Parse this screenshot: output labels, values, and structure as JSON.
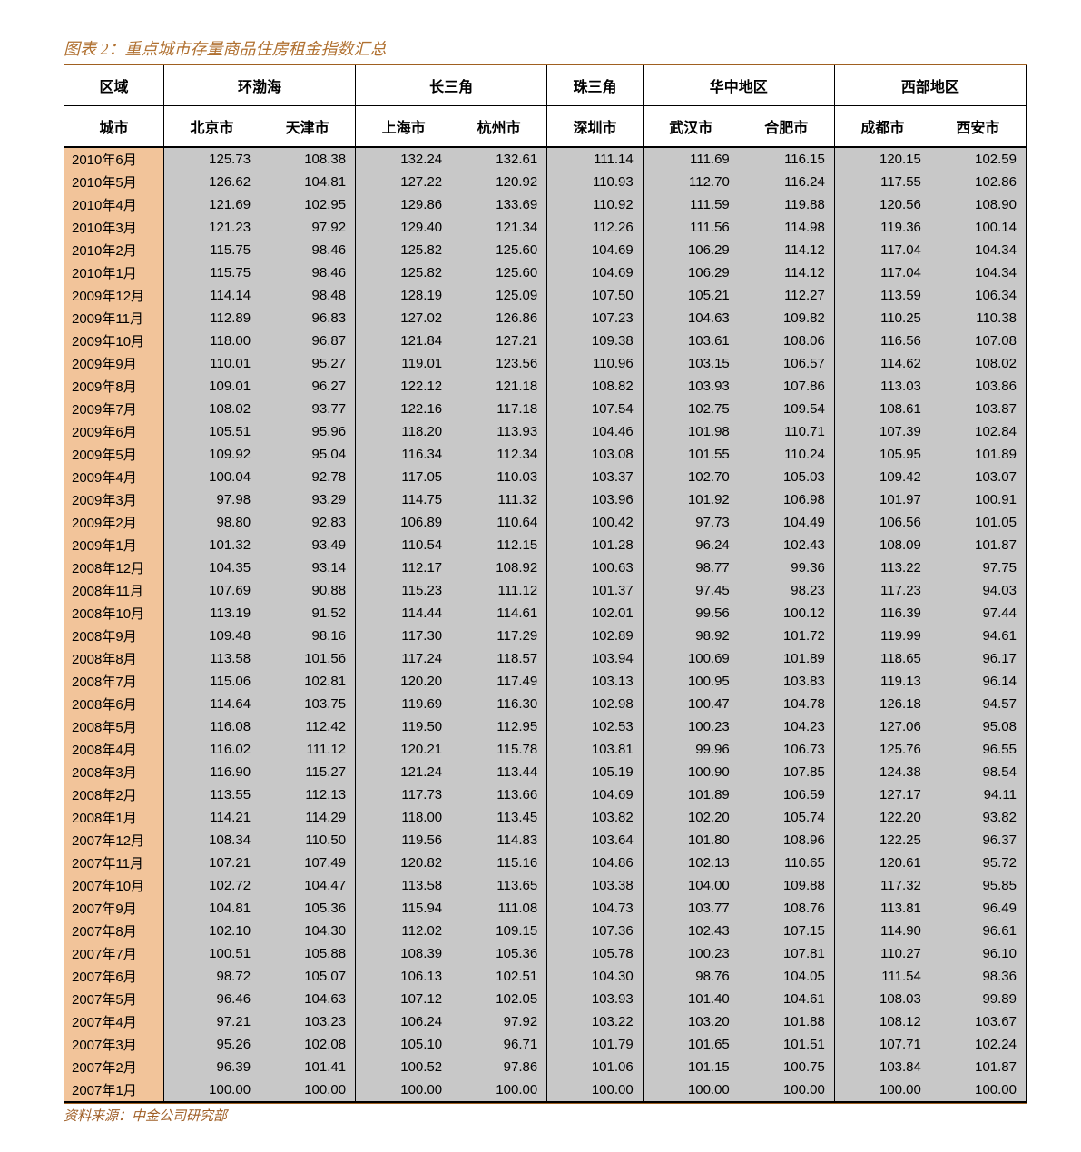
{
  "type": "table",
  "title": "图表 2：重点城市存量商品住房租金指数汇总",
  "source": "资料来源：中金公司研究部",
  "colors": {
    "title_text": "#b07030",
    "rule": "#a06020",
    "date_bg": "#f2c49a",
    "value_bg": "#c8c8c8",
    "border": "#000000",
    "page_bg": "#ffffff"
  },
  "fontsizes": {
    "title": 18,
    "header": 16,
    "body": 15,
    "source": 15
  },
  "header": {
    "row1_label": "区域",
    "row2_label": "城市",
    "regions": [
      {
        "name": "环渤海",
        "cities": [
          "北京市",
          "天津市"
        ]
      },
      {
        "name": "长三角",
        "cities": [
          "上海市",
          "杭州市"
        ]
      },
      {
        "name": "珠三角",
        "cities": [
          "深圳市"
        ]
      },
      {
        "name": "华中地区",
        "cities": [
          "武汉市",
          "合肥市"
        ]
      },
      {
        "name": "西部地区",
        "cities": [
          "成都市",
          "西安市"
        ]
      }
    ]
  },
  "columns": [
    "date",
    "北京市",
    "天津市",
    "上海市",
    "杭州市",
    "深圳市",
    "武汉市",
    "合肥市",
    "成都市",
    "西安市"
  ],
  "rows": [
    [
      "2010年6月",
      125.73,
      108.38,
      132.24,
      132.61,
      111.14,
      111.69,
      116.15,
      120.15,
      102.59
    ],
    [
      "2010年5月",
      126.62,
      104.81,
      127.22,
      120.92,
      110.93,
      112.7,
      116.24,
      117.55,
      102.86
    ],
    [
      "2010年4月",
      121.69,
      102.95,
      129.86,
      133.69,
      110.92,
      111.59,
      119.88,
      120.56,
      108.9
    ],
    [
      "2010年3月",
      121.23,
      97.92,
      129.4,
      121.34,
      112.26,
      111.56,
      114.98,
      119.36,
      100.14
    ],
    [
      "2010年2月",
      115.75,
      98.46,
      125.82,
      125.6,
      104.69,
      106.29,
      114.12,
      117.04,
      104.34
    ],
    [
      "2010年1月",
      115.75,
      98.46,
      125.82,
      125.6,
      104.69,
      106.29,
      114.12,
      117.04,
      104.34
    ],
    [
      "2009年12月",
      114.14,
      98.48,
      128.19,
      125.09,
      107.5,
      105.21,
      112.27,
      113.59,
      106.34
    ],
    [
      "2009年11月",
      112.89,
      96.83,
      127.02,
      126.86,
      107.23,
      104.63,
      109.82,
      110.25,
      110.38
    ],
    [
      "2009年10月",
      118.0,
      96.87,
      121.84,
      127.21,
      109.38,
      103.61,
      108.06,
      116.56,
      107.08
    ],
    [
      "2009年9月",
      110.01,
      95.27,
      119.01,
      123.56,
      110.96,
      103.15,
      106.57,
      114.62,
      108.02
    ],
    [
      "2009年8月",
      109.01,
      96.27,
      122.12,
      121.18,
      108.82,
      103.93,
      107.86,
      113.03,
      103.86
    ],
    [
      "2009年7月",
      108.02,
      93.77,
      122.16,
      117.18,
      107.54,
      102.75,
      109.54,
      108.61,
      103.87
    ],
    [
      "2009年6月",
      105.51,
      95.96,
      118.2,
      113.93,
      104.46,
      101.98,
      110.71,
      107.39,
      102.84
    ],
    [
      "2009年5月",
      109.92,
      95.04,
      116.34,
      112.34,
      103.08,
      101.55,
      110.24,
      105.95,
      101.89
    ],
    [
      "2009年4月",
      100.04,
      92.78,
      117.05,
      110.03,
      103.37,
      102.7,
      105.03,
      109.42,
      103.07
    ],
    [
      "2009年3月",
      97.98,
      93.29,
      114.75,
      111.32,
      103.96,
      101.92,
      106.98,
      101.97,
      100.91
    ],
    [
      "2009年2月",
      98.8,
      92.83,
      106.89,
      110.64,
      100.42,
      97.73,
      104.49,
      106.56,
      101.05
    ],
    [
      "2009年1月",
      101.32,
      93.49,
      110.54,
      112.15,
      101.28,
      96.24,
      102.43,
      108.09,
      101.87
    ],
    [
      "2008年12月",
      104.35,
      93.14,
      112.17,
      108.92,
      100.63,
      98.77,
      99.36,
      113.22,
      97.75
    ],
    [
      "2008年11月",
      107.69,
      90.88,
      115.23,
      111.12,
      101.37,
      97.45,
      98.23,
      117.23,
      94.03
    ],
    [
      "2008年10月",
      113.19,
      91.52,
      114.44,
      114.61,
      102.01,
      99.56,
      100.12,
      116.39,
      97.44
    ],
    [
      "2008年9月",
      109.48,
      98.16,
      117.3,
      117.29,
      102.89,
      98.92,
      101.72,
      119.99,
      94.61
    ],
    [
      "2008年8月",
      113.58,
      101.56,
      117.24,
      118.57,
      103.94,
      100.69,
      101.89,
      118.65,
      96.17
    ],
    [
      "2008年7月",
      115.06,
      102.81,
      120.2,
      117.49,
      103.13,
      100.95,
      103.83,
      119.13,
      96.14
    ],
    [
      "2008年6月",
      114.64,
      103.75,
      119.69,
      116.3,
      102.98,
      100.47,
      104.78,
      126.18,
      94.57
    ],
    [
      "2008年5月",
      116.08,
      112.42,
      119.5,
      112.95,
      102.53,
      100.23,
      104.23,
      127.06,
      95.08
    ],
    [
      "2008年4月",
      116.02,
      111.12,
      120.21,
      115.78,
      103.81,
      99.96,
      106.73,
      125.76,
      96.55
    ],
    [
      "2008年3月",
      116.9,
      115.27,
      121.24,
      113.44,
      105.19,
      100.9,
      107.85,
      124.38,
      98.54
    ],
    [
      "2008年2月",
      113.55,
      112.13,
      117.73,
      113.66,
      104.69,
      101.89,
      106.59,
      127.17,
      94.11
    ],
    [
      "2008年1月",
      114.21,
      114.29,
      118.0,
      113.45,
      103.82,
      102.2,
      105.74,
      122.2,
      93.82
    ],
    [
      "2007年12月",
      108.34,
      110.5,
      119.56,
      114.83,
      103.64,
      101.8,
      108.96,
      122.25,
      96.37
    ],
    [
      "2007年11月",
      107.21,
      107.49,
      120.82,
      115.16,
      104.86,
      102.13,
      110.65,
      120.61,
      95.72
    ],
    [
      "2007年10月",
      102.72,
      104.47,
      113.58,
      113.65,
      103.38,
      104.0,
      109.88,
      117.32,
      95.85
    ],
    [
      "2007年9月",
      104.81,
      105.36,
      115.94,
      111.08,
      104.73,
      103.77,
      108.76,
      113.81,
      96.49
    ],
    [
      "2007年8月",
      102.1,
      104.3,
      112.02,
      109.15,
      107.36,
      102.43,
      107.15,
      114.9,
      96.61
    ],
    [
      "2007年7月",
      100.51,
      105.88,
      108.39,
      105.36,
      105.78,
      100.23,
      107.81,
      110.27,
      96.1
    ],
    [
      "2007年6月",
      98.72,
      105.07,
      106.13,
      102.51,
      104.3,
      98.76,
      104.05,
      111.54,
      98.36
    ],
    [
      "2007年5月",
      96.46,
      104.63,
      107.12,
      102.05,
      103.93,
      101.4,
      104.61,
      108.03,
      99.89
    ],
    [
      "2007年4月",
      97.21,
      103.23,
      106.24,
      97.92,
      103.22,
      103.2,
      101.88,
      108.12,
      103.67
    ],
    [
      "2007年3月",
      95.26,
      102.08,
      105.1,
      96.71,
      101.79,
      101.65,
      101.51,
      107.71,
      102.24
    ],
    [
      "2007年2月",
      96.39,
      101.41,
      100.52,
      97.86,
      101.06,
      101.15,
      100.75,
      103.84,
      101.87
    ],
    [
      "2007年1月",
      100.0,
      100.0,
      100.0,
      100.0,
      100.0,
      100.0,
      100.0,
      100.0,
      100.0
    ]
  ],
  "region_boundaries_after_value_col": [
    2,
    4,
    5,
    7
  ]
}
